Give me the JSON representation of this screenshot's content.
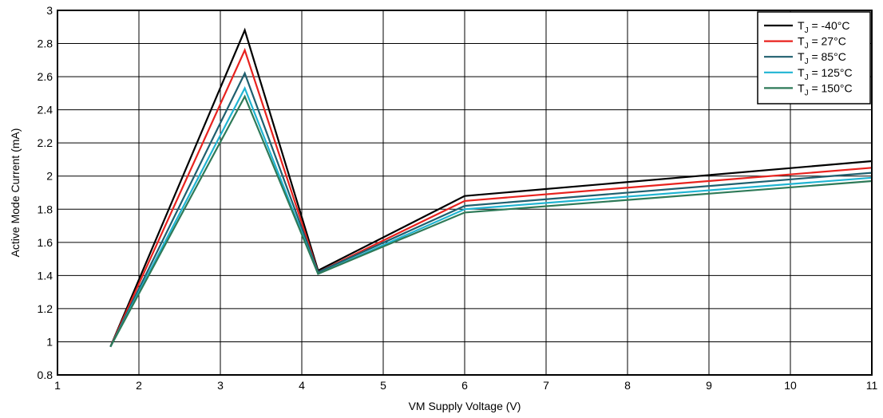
{
  "chart_data": {
    "type": "line",
    "title": "",
    "xlabel": "VM Supply Voltage (V)",
    "ylabel": "Active Mode Current (mA)",
    "xlim": [
      1,
      11
    ],
    "ylim": [
      0.8,
      3
    ],
    "xticks": [
      1,
      2,
      3,
      4,
      5,
      6,
      7,
      8,
      9,
      10,
      11
    ],
    "yticks": [
      0.8,
      1,
      1.2,
      1.4,
      1.6,
      1.8,
      2,
      2.2,
      2.4,
      2.6,
      2.8,
      3
    ],
    "grid": true,
    "legend_position": "top-right",
    "x": [
      1.65,
      3.3,
      4.2,
      6,
      11
    ],
    "series": [
      {
        "name": "T_J = -40°C",
        "label_main": "T",
        "label_sub": "J",
        "label_rest": " = -40°C",
        "color": "#000000",
        "values": [
          0.97,
          2.88,
          1.43,
          1.88,
          2.09
        ]
      },
      {
        "name": "T_J = 27°C",
        "label_main": "T",
        "label_sub": "J",
        "label_rest": " = 27°C",
        "color": "#e8221e",
        "values": [
          0.97,
          2.76,
          1.42,
          1.85,
          2.05
        ]
      },
      {
        "name": "T_J = 85°C",
        "label_main": "T",
        "label_sub": "J",
        "label_rest": " = 85°C",
        "color": "#1f5f6e",
        "values": [
          0.97,
          2.62,
          1.42,
          1.82,
          2.02
        ]
      },
      {
        "name": "T_J = 125°C",
        "label_main": "T",
        "label_sub": "J",
        "label_rest": " = 125°C",
        "color": "#1fb4d2",
        "values": [
          0.97,
          2.53,
          1.41,
          1.8,
          1.99
        ]
      },
      {
        "name": "T_J = 150°C",
        "label_main": "T",
        "label_sub": "J",
        "label_rest": " = 150°C",
        "color": "#2e7a58",
        "values": [
          0.97,
          2.48,
          1.41,
          1.78,
          1.97
        ]
      }
    ]
  }
}
